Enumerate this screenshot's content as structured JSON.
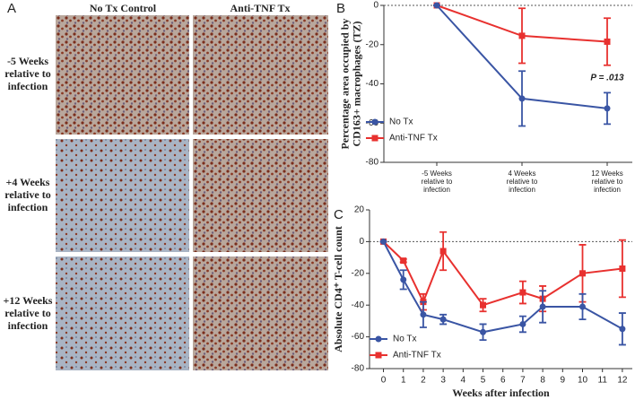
{
  "panel_a": {
    "label": "A",
    "columns": [
      "No Tx Control",
      "Anti-TNF Tx"
    ],
    "rows": [
      "-5 Weeks\nrelative to\ninfection",
      "+4 Weeks\nrelative to\ninfection",
      "+12 Weeks\nrelative to\ninfection"
    ]
  },
  "chart_data": [
    {
      "type": "line",
      "label": "B",
      "ylabel": "Percentage area occupied by\nCD163+ macrophages (TZ)",
      "categories": [
        "-5 Weeks\nrelative to\ninfection",
        "4 Weeks\nrelative to\ninfection",
        "12 Weeks\nrelative to\ninfection"
      ],
      "series": [
        {
          "name": "No Tx",
          "color": "#3a55a4",
          "values": [
            0,
            -47.5,
            -52.5
          ],
          "errors": [
            0,
            14,
            8
          ]
        },
        {
          "name": "Anti-TNF Tx",
          "color": "#e8312f",
          "values": [
            0,
            -15.5,
            -18.5
          ],
          "errors": [
            0,
            14,
            12
          ]
        }
      ],
      "ylim": [
        -80,
        0
      ],
      "yticks": [
        0,
        -20,
        -40,
        -60,
        -80
      ],
      "annotation": "P = .013",
      "reference_line": 0
    },
    {
      "type": "line",
      "label": "C",
      "ylabel": "Absolute CD4⁺ T-cell count",
      "xlabel": "Weeks after infection",
      "x": [
        0,
        1,
        2,
        3,
        5,
        7,
        8,
        10,
        12
      ],
      "series": [
        {
          "name": "No Tx",
          "color": "#3a55a4",
          "values": [
            0,
            -24,
            -46,
            -49,
            -57,
            -52,
            -41,
            -41,
            -55
          ],
          "errors": [
            0,
            6,
            8,
            3,
            5,
            5,
            10,
            8,
            10
          ]
        },
        {
          "name": "Anti-TNF Tx",
          "color": "#e8312f",
          "values": [
            0,
            -12,
            -38,
            -6,
            -40,
            -32,
            -36,
            -20,
            -17
          ],
          "errors": [
            0,
            1,
            5,
            12,
            4,
            7,
            8,
            18,
            18
          ]
        }
      ],
      "xlim": [
        -0.7,
        12.5
      ],
      "xticks": [
        0,
        1,
        2,
        3,
        4,
        5,
        6,
        7,
        8,
        9,
        10,
        11,
        12
      ],
      "ylim": [
        -80,
        20
      ],
      "yticks": [
        20,
        0,
        -20,
        -40,
        -60,
        -80
      ],
      "reference_line": 0
    }
  ]
}
